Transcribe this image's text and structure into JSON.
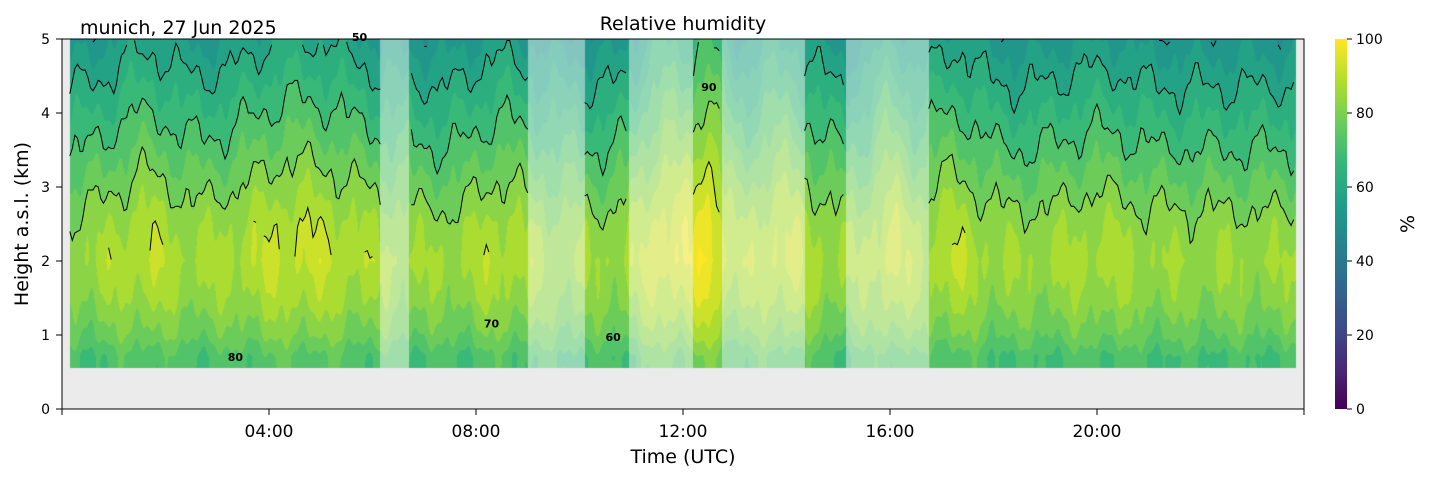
{
  "figure": {
    "location_label": "munich, 27 Jun 2025"
  },
  "chart_data": {
    "type": "heatmap",
    "title": "Relative humidity",
    "xlabel": "Time (UTC)",
    "ylabel": "Height a.s.l. (km)",
    "x_unit": "hours UTC",
    "xlim": [
      0,
      24
    ],
    "ylim": [
      0,
      5
    ],
    "x_ticks": [
      {
        "value": 4,
        "label": "04:00"
      },
      {
        "value": 8,
        "label": "08:00"
      },
      {
        "value": 12,
        "label": "12:00"
      },
      {
        "value": 16,
        "label": "16:00"
      },
      {
        "value": 20,
        "label": "20:00"
      }
    ],
    "y_ticks": [
      {
        "value": 0,
        "label": "0"
      },
      {
        "value": 1,
        "label": "1"
      },
      {
        "value": 2,
        "label": "2"
      },
      {
        "value": 3,
        "label": "3"
      },
      {
        "value": 4,
        "label": "4"
      },
      {
        "value": 5,
        "label": "5"
      }
    ],
    "data_bottom_km": 0.55,
    "data_start_h": 0.15,
    "data_end_h": 23.85,
    "missing_fill_color": "#ebebeb",
    "colorbar": {
      "label": "%",
      "range": [
        0,
        100
      ],
      "colormap": "viridis",
      "ticks": [
        {
          "value": 0,
          "label": "0"
        },
        {
          "value": 20,
          "label": "20"
        },
        {
          "value": 40,
          "label": "40"
        },
        {
          "value": 60,
          "label": "60"
        },
        {
          "value": 80,
          "label": "80"
        },
        {
          "value": 100,
          "label": "100"
        }
      ]
    },
    "contour_levels": [
      50,
      60,
      70,
      80,
      90
    ],
    "contour_labels": [
      {
        "text": "90",
        "x": 12.5,
        "y": 4.3
      },
      {
        "text": "80",
        "x": 3.35,
        "y": 0.65
      },
      {
        "text": "70",
        "x": 8.3,
        "y": 1.1
      },
      {
        "text": "60",
        "x": 10.65,
        "y": 0.92
      },
      {
        "text": "50",
        "x": 5.75,
        "y": 4.97
      }
    ],
    "masked_periods_h": [
      [
        6.15,
        6.7
      ],
      [
        9.0,
        10.1
      ],
      [
        10.95,
        12.2
      ],
      [
        12.75,
        14.35
      ],
      [
        15.15,
        16.75
      ]
    ],
    "profile_summary": [
      {
        "height_km": 0.7,
        "rh_pct": 70
      },
      {
        "height_km": 1.0,
        "rh_pct": 76
      },
      {
        "height_km": 1.5,
        "rh_pct": 82
      },
      {
        "height_km": 2.0,
        "rh_pct": 85
      },
      {
        "height_km": 2.5,
        "rh_pct": 82
      },
      {
        "height_km": 3.0,
        "rh_pct": 76
      },
      {
        "height_km": 3.5,
        "rh_pct": 70
      },
      {
        "height_km": 4.0,
        "rh_pct": 64
      },
      {
        "height_km": 4.5,
        "rh_pct": 58
      },
      {
        "height_km": 5.0,
        "rh_pct": 52
      }
    ],
    "humid_bursts_h": [
      {
        "center": 1.6,
        "width": 0.7,
        "boost": 6
      },
      {
        "center": 4.6,
        "width": 1.4,
        "boost": 8
      },
      {
        "center": 8.5,
        "width": 0.6,
        "boost": 5
      },
      {
        "center": 11.7,
        "width": 0.6,
        "boost": 12
      },
      {
        "center": 12.5,
        "width": 0.35,
        "boost": 16
      },
      {
        "center": 13.9,
        "width": 0.7,
        "boost": 8
      },
      {
        "center": 16.0,
        "width": 0.4,
        "boost": 8
      },
      {
        "center": 17.2,
        "width": 0.6,
        "boost": 6
      },
      {
        "center": 20.0,
        "width": 0.8,
        "boost": 3
      }
    ]
  }
}
